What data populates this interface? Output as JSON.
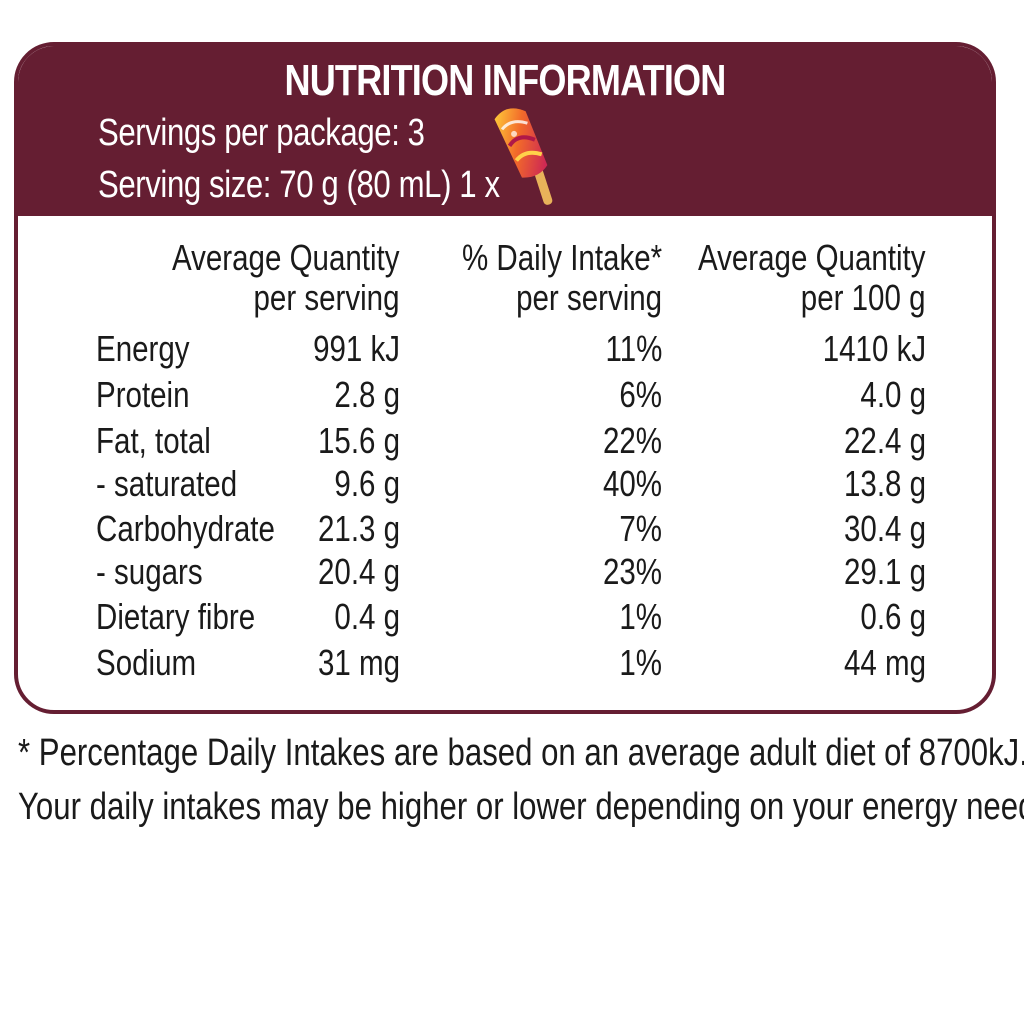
{
  "colors": {
    "brand": "#651e32",
    "header_text": "#ffffff",
    "body_text": "#1a1a1a"
  },
  "header": {
    "title": "NUTRITION INFORMATION",
    "servings_per_package": "Servings per package: 3",
    "serving_size": "Serving size: 70 g (80 mL) 1 x",
    "serving_icon": "ice-cream-icon"
  },
  "table": {
    "columns": [
      {
        "line1": "Average Quantity",
        "line2": "per serving"
      },
      {
        "line1": "% Daily Intake*",
        "line2": "per serving"
      },
      {
        "line1": "Average Quantity",
        "line2": "per 100 g"
      }
    ],
    "rows": [
      {
        "name": "Energy",
        "per_serving": "991 kJ",
        "daily_intake": "11%",
        "per_100g": "1410 kJ"
      },
      {
        "name": "Protein",
        "per_serving": "2.8 g",
        "daily_intake": "6%",
        "per_100g": "4.0 g"
      },
      {
        "name": "Fat, total",
        "per_serving": "15.6 g",
        "daily_intake": "22%",
        "per_100g": "22.4 g"
      },
      {
        "name": "- saturated",
        "per_serving": "9.6 g",
        "daily_intake": "40%",
        "per_100g": "13.8 g"
      },
      {
        "name": "Carbohydrate",
        "per_serving": "21.3 g",
        "daily_intake": "7%",
        "per_100g": "30.4 g"
      },
      {
        "name": "- sugars",
        "per_serving": "20.4 g",
        "daily_intake": "23%",
        "per_100g": "29.1 g"
      },
      {
        "name": "Dietary fibre",
        "per_serving": "0.4 g",
        "daily_intake": "1%",
        "per_100g": "0.6 g"
      },
      {
        "name": "Sodium",
        "per_serving": "31 mg",
        "daily_intake": "1%",
        "per_100g": "44 mg"
      }
    ]
  },
  "footnote": {
    "line1": "* Percentage Daily Intakes are based on an average adult diet of 8700kJ.",
    "line2": "Your daily intakes may be higher or lower depending on your energy needs."
  }
}
